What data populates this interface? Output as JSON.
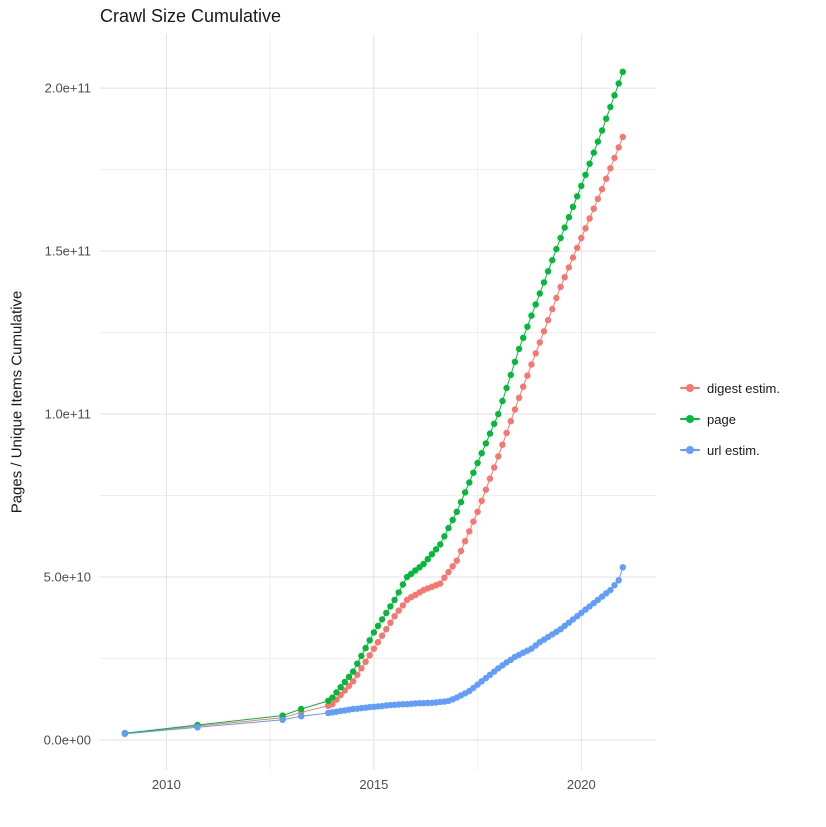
{
  "chart_data": {
    "type": "scatter",
    "title": "Crawl Size Cumulative",
    "xlabel": "",
    "ylabel": "Pages / Unique Items Cumulative",
    "grid": true,
    "legend_position": "right",
    "value_unit": "items (y values stored in billions, multiply by y_scale)",
    "y_scale": 1000000000,
    "xlim": [
      2008.4,
      2021.8
    ],
    "ylim": [
      -9.2,
      216.6
    ],
    "x_ticks": [
      {
        "value": 2010,
        "label": "2010"
      },
      {
        "value": 2015,
        "label": "2015"
      },
      {
        "value": 2020,
        "label": "2020"
      }
    ],
    "x_minor_ticks": [
      2012.5,
      2017.5
    ],
    "y_ticks": [
      {
        "value": 0,
        "label": "0.0e+00"
      },
      {
        "value": 50,
        "label": "5.0e+10"
      },
      {
        "value": 100,
        "label": "1.0e+11"
      },
      {
        "value": 150,
        "label": "1.5e+11"
      },
      {
        "value": 200,
        "label": "2.0e+11"
      }
    ],
    "y_minor_ticks": [
      25,
      75,
      125,
      175
    ],
    "series": [
      {
        "name": "digest estim.",
        "color": "#F8766D",
        "early_points": [
          [
            2009.0,
            2.0
          ],
          [
            2010.75,
            4.3
          ],
          [
            2012.8,
            6.8
          ],
          [
            2013.25,
            8.5
          ],
          [
            2013.9,
            10.5
          ]
        ],
        "dense_x_start": 2014.0,
        "dense_x_step": 0.1,
        "dense_values": [
          11,
          12.4,
          13.8,
          15.2,
          16.6,
          18,
          20,
          22,
          24,
          26,
          28,
          30,
          32,
          34,
          36,
          38,
          39.7,
          41.3,
          43,
          43.8,
          44.5,
          45.3,
          46,
          46.5,
          47,
          47.5,
          48,
          49.8,
          51.5,
          53.3,
          55,
          58,
          61,
          64,
          67,
          70,
          73.4,
          76.8,
          80.2,
          83.6,
          87,
          90.6,
          94.2,
          97.8,
          101.4,
          105,
          108.4,
          111.8,
          115.2,
          118.6,
          122,
          125.4,
          128.8,
          132.2,
          135.6,
          139,
          142,
          145,
          148,
          151,
          154,
          157,
          160,
          163,
          166,
          169,
          172.2,
          175.4,
          178.6,
          181.8,
          185
        ]
      },
      {
        "name": "page",
        "color": "#00BA38",
        "early_points": [
          [
            2009.0,
            2.1
          ],
          [
            2010.75,
            4.6
          ],
          [
            2012.8,
            7.5
          ],
          [
            2013.25,
            9.5
          ],
          [
            2013.9,
            12.0
          ]
        ],
        "dense_x_start": 2014.0,
        "dense_x_step": 0.1,
        "dense_values": [
          13,
          14.6,
          16.2,
          17.8,
          19.4,
          21,
          23.4,
          25.8,
          28.2,
          30.6,
          33,
          35,
          37,
          39,
          41,
          43,
          45.3,
          47.7,
          50,
          51,
          52,
          53,
          54,
          55.5,
          57,
          58.5,
          60,
          62.5,
          65,
          67.5,
          70,
          73,
          76,
          79,
          82,
          85,
          88,
          91,
          94,
          97,
          100,
          104,
          108,
          112,
          116,
          120,
          123.4,
          126.8,
          130.2,
          133.6,
          137,
          140.4,
          143.8,
          147.2,
          150.6,
          154,
          157.2,
          160.4,
          163.6,
          166.8,
          170,
          173.4,
          176.8,
          180.2,
          183.6,
          187,
          190.6,
          194.2,
          197.8,
          201.4,
          205
        ]
      },
      {
        "name": "url estim.",
        "color": "#619CFF",
        "early_points": [
          [
            2009.0,
            1.9
          ],
          [
            2010.75,
            3.9
          ],
          [
            2012.8,
            6.2
          ],
          [
            2013.25,
            7.3
          ],
          [
            2013.9,
            8.3
          ]
        ],
        "dense_x_start": 2014.0,
        "dense_x_step": 0.1,
        "dense_values": [
          8.5,
          8.7,
          8.9,
          9.1,
          9.3,
          9.5,
          9.6,
          9.8,
          9.9,
          10.1,
          10.2,
          10.3,
          10.4,
          10.6,
          10.7,
          10.8,
          10.9,
          11,
          11,
          11.1,
          11.2,
          11.3,
          11.3,
          11.4,
          11.4,
          11.5,
          11.7,
          11.8,
          12,
          12.5,
          13,
          13.7,
          14.3,
          15,
          16,
          17,
          18,
          19,
          20,
          21,
          22,
          22.9,
          23.8,
          24.6,
          25.5,
          26.1,
          26.8,
          27.4,
          28,
          29,
          30,
          30.8,
          31.6,
          32.4,
          33.2,
          34,
          35,
          36,
          37,
          38,
          39,
          40,
          41,
          42,
          43,
          44,
          45,
          46,
          47.5,
          49,
          53
        ]
      }
    ],
    "style": {
      "grid_major_color": "#e2e2e2",
      "grid_minor_color": "#efefef",
      "tick_label_color": "#4d4d4d",
      "point_radius": 3.2,
      "line_width": 1
    }
  }
}
